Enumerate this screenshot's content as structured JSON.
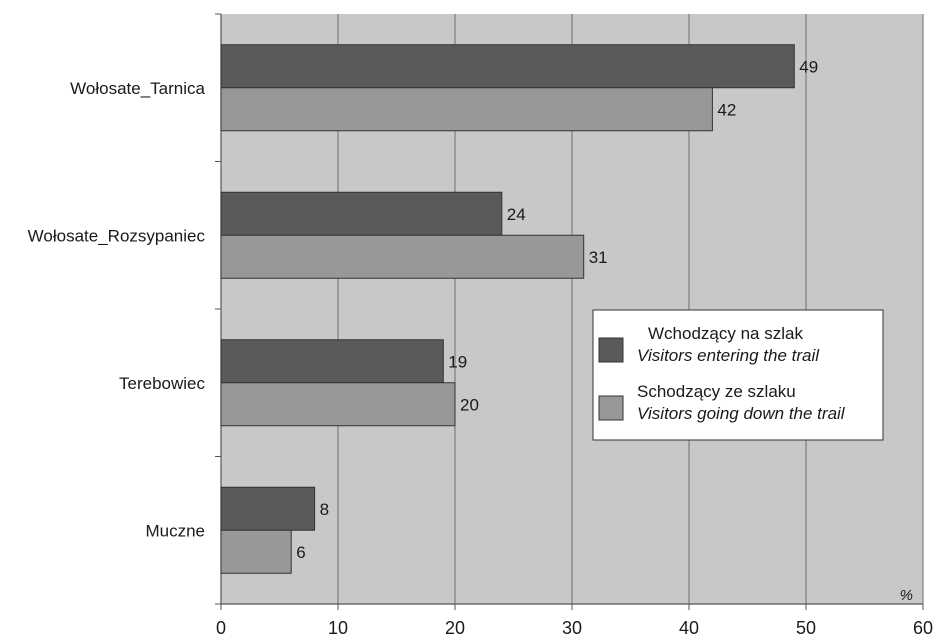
{
  "chart_data": {
    "type": "bar",
    "orientation": "horizontal",
    "categories": [
      "Wołosate_Tarnica",
      "Wołosate_Rozsypaniec",
      "Terebowiec",
      "Muczne"
    ],
    "series": [
      {
        "name_pl": "Wchodzący na szlak",
        "name_en": "Visitors entering the trail",
        "color": "#5a5a5c",
        "values": [
          49,
          24,
          19,
          8
        ],
        "value_labels": [
          "49",
          "24",
          "19",
          "8"
        ]
      },
      {
        "name_pl": "Schodzący ze szlaku",
        "name_en": "Visitors going down the trail",
        "color": "#98989a",
        "values": [
          42,
          31,
          20,
          6
        ],
        "value_labels": [
          "42",
          "31",
          "20",
          "6"
        ]
      }
    ],
    "xlim": [
      0,
      60
    ],
    "x_ticks": [
      0,
      10,
      20,
      30,
      40,
      50,
      60
    ],
    "x_tick_labels": [
      "0",
      "10",
      "20",
      "30",
      "40",
      "50",
      "60"
    ],
    "unit": "%",
    "grid": "vertical",
    "legend_position": "right",
    "plot_background": "#c8c8ca"
  }
}
